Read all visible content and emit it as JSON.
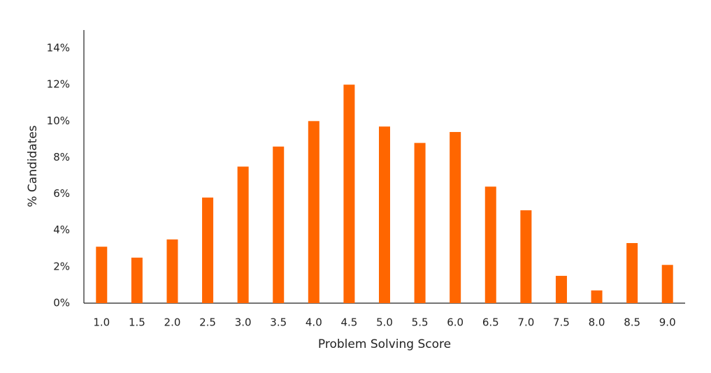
{
  "chart_data": {
    "type": "bar",
    "x_label": "Problem Solving Score",
    "y_label": "% Candidates",
    "categories": [
      "1.0",
      "1.5",
      "2.0",
      "2.5",
      "3.0",
      "3.5",
      "4.0",
      "4.5",
      "5.0",
      "5.5",
      "6.0",
      "6.5",
      "7.0",
      "7.5",
      "8.0",
      "8.5",
      "9.0"
    ],
    "values": [
      3.1,
      2.5,
      3.5,
      5.8,
      7.5,
      8.6,
      10.0,
      12.0,
      9.7,
      8.8,
      9.4,
      6.4,
      5.1,
      1.5,
      0.7,
      3.3,
      2.1
    ],
    "color": "#ff6600",
    "ylim": [
      0,
      15
    ],
    "yticks": [
      {
        "value": 0,
        "label": "0%"
      },
      {
        "value": 2,
        "label": "2%"
      },
      {
        "value": 4,
        "label": "4%"
      },
      {
        "value": 6,
        "label": "6%"
      },
      {
        "value": 8,
        "label": "8%"
      },
      {
        "value": 10,
        "label": "10%"
      },
      {
        "value": 12,
        "label": "12%"
      },
      {
        "value": 14,
        "label": "14%"
      }
    ],
    "grid": false
  }
}
